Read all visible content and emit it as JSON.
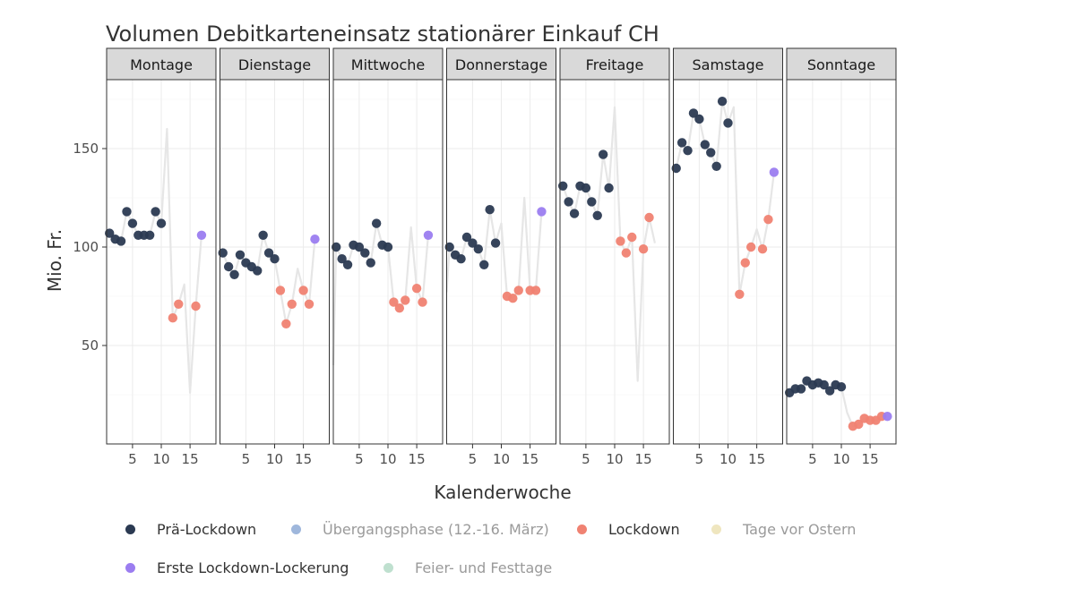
{
  "chart_data": {
    "type": "scatter",
    "title": "Volumen Debitkarteneinsatz stationärer Einkauf CH",
    "xlabel": "Kalenderwoche",
    "ylabel": "Mio. Fr.",
    "xlim": [
      0.5,
      19.5
    ],
    "ylim": [
      0,
      185
    ],
    "x_ticks": [
      5,
      10,
      15
    ],
    "y_ticks": [
      50,
      100,
      150
    ],
    "grid": true,
    "legend_position": "bottom",
    "categories": [
      "Prä-Lockdown",
      "Übergangsphase (12.-16. März)",
      "Lockdown",
      "Tage vor Ostern",
      "Erste Lockdown-Lockerung",
      "Feier- und Festtage"
    ],
    "category_colors": {
      "Prä-Lockdown": "#2b3a52",
      "Übergangsphase (12.-16. März)": "#9fb7dc",
      "Lockdown": "#f08272",
      "Tage vor Ostern": "#efe6bf",
      "Erste Lockdown-Lockerung": "#9b7df0",
      "Feier- und Festtage": "#bfe0cf"
    },
    "line_color": "#e6e6e6",
    "panels": [
      {
        "day": "Montage",
        "line": [
          [
            1,
            107
          ],
          [
            2,
            104
          ],
          [
            3,
            103
          ],
          [
            4,
            118
          ],
          [
            5,
            112
          ],
          [
            6,
            106
          ],
          [
            7,
            106
          ],
          [
            8,
            106
          ],
          [
            9,
            118
          ],
          [
            10,
            112
          ],
          [
            11,
            160
          ],
          [
            12,
            64
          ],
          [
            13,
            71
          ],
          [
            14,
            81
          ],
          [
            15,
            26
          ],
          [
            16,
            70
          ],
          [
            17,
            106
          ]
        ],
        "points": [
          {
            "x": 1,
            "y": 107,
            "c": "Prä-Lockdown"
          },
          {
            "x": 2,
            "y": 104,
            "c": "Prä-Lockdown"
          },
          {
            "x": 3,
            "y": 103,
            "c": "Prä-Lockdown"
          },
          {
            "x": 4,
            "y": 118,
            "c": "Prä-Lockdown"
          },
          {
            "x": 5,
            "y": 112,
            "c": "Prä-Lockdown"
          },
          {
            "x": 6,
            "y": 106,
            "c": "Prä-Lockdown"
          },
          {
            "x": 7,
            "y": 106,
            "c": "Prä-Lockdown"
          },
          {
            "x": 8,
            "y": 106,
            "c": "Prä-Lockdown"
          },
          {
            "x": 9,
            "y": 118,
            "c": "Prä-Lockdown"
          },
          {
            "x": 10,
            "y": 112,
            "c": "Prä-Lockdown"
          },
          {
            "x": 12,
            "y": 64,
            "c": "Lockdown"
          },
          {
            "x": 13,
            "y": 71,
            "c": "Lockdown"
          },
          {
            "x": 16,
            "y": 70,
            "c": "Lockdown"
          },
          {
            "x": 17,
            "y": 106,
            "c": "Erste Lockdown-Lockerung"
          }
        ]
      },
      {
        "day": "Dienstage",
        "line": [
          [
            1,
            97
          ],
          [
            2,
            90
          ],
          [
            3,
            86
          ],
          [
            4,
            96
          ],
          [
            5,
            92
          ],
          [
            6,
            90
          ],
          [
            7,
            88
          ],
          [
            8,
            106
          ],
          [
            9,
            97
          ],
          [
            10,
            94
          ],
          [
            11,
            78
          ],
          [
            12,
            61
          ],
          [
            13,
            71
          ],
          [
            14,
            89
          ],
          [
            15,
            78
          ],
          [
            16,
            71
          ],
          [
            17,
            104
          ]
        ],
        "points": [
          {
            "x": 1,
            "y": 97,
            "c": "Prä-Lockdown"
          },
          {
            "x": 2,
            "y": 90,
            "c": "Prä-Lockdown"
          },
          {
            "x": 3,
            "y": 86,
            "c": "Prä-Lockdown"
          },
          {
            "x": 4,
            "y": 96,
            "c": "Prä-Lockdown"
          },
          {
            "x": 5,
            "y": 92,
            "c": "Prä-Lockdown"
          },
          {
            "x": 6,
            "y": 90,
            "c": "Prä-Lockdown"
          },
          {
            "x": 7,
            "y": 88,
            "c": "Prä-Lockdown"
          },
          {
            "x": 8,
            "y": 106,
            "c": "Prä-Lockdown"
          },
          {
            "x": 9,
            "y": 97,
            "c": "Prä-Lockdown"
          },
          {
            "x": 10,
            "y": 94,
            "c": "Prä-Lockdown"
          },
          {
            "x": 11,
            "y": 78,
            "c": "Lockdown"
          },
          {
            "x": 12,
            "y": 61,
            "c": "Lockdown"
          },
          {
            "x": 13,
            "y": 71,
            "c": "Lockdown"
          },
          {
            "x": 15,
            "y": 78,
            "c": "Lockdown"
          },
          {
            "x": 16,
            "y": 71,
            "c": "Lockdown"
          },
          {
            "x": 17,
            "y": 104,
            "c": "Erste Lockdown-Lockerung"
          }
        ]
      },
      {
        "day": "Mittwoche",
        "line": [
          [
            0.5,
            40
          ],
          [
            1,
            100
          ],
          [
            2,
            94
          ],
          [
            3,
            91
          ],
          [
            4,
            101
          ],
          [
            5,
            100
          ],
          [
            6,
            97
          ],
          [
            7,
            92
          ],
          [
            8,
            112
          ],
          [
            9,
            101
          ],
          [
            10,
            100
          ],
          [
            11,
            72
          ],
          [
            12,
            69
          ],
          [
            13,
            73
          ],
          [
            14,
            110
          ],
          [
            15,
            79
          ],
          [
            16,
            72
          ],
          [
            17,
            106
          ]
        ],
        "points": [
          {
            "x": 1,
            "y": 100,
            "c": "Prä-Lockdown"
          },
          {
            "x": 2,
            "y": 94,
            "c": "Prä-Lockdown"
          },
          {
            "x": 3,
            "y": 91,
            "c": "Prä-Lockdown"
          },
          {
            "x": 4,
            "y": 101,
            "c": "Prä-Lockdown"
          },
          {
            "x": 5,
            "y": 100,
            "c": "Prä-Lockdown"
          },
          {
            "x": 6,
            "y": 97,
            "c": "Prä-Lockdown"
          },
          {
            "x": 7,
            "y": 92,
            "c": "Prä-Lockdown"
          },
          {
            "x": 8,
            "y": 112,
            "c": "Prä-Lockdown"
          },
          {
            "x": 9,
            "y": 101,
            "c": "Prä-Lockdown"
          },
          {
            "x": 10,
            "y": 100,
            "c": "Prä-Lockdown"
          },
          {
            "x": 11,
            "y": 72,
            "c": "Lockdown"
          },
          {
            "x": 12,
            "y": 69,
            "c": "Lockdown"
          },
          {
            "x": 13,
            "y": 73,
            "c": "Lockdown"
          },
          {
            "x": 15,
            "y": 79,
            "c": "Lockdown"
          },
          {
            "x": 16,
            "y": 72,
            "c": "Lockdown"
          },
          {
            "x": 17,
            "y": 106,
            "c": "Erste Lockdown-Lockerung"
          }
        ]
      },
      {
        "day": "Donnerstage",
        "line": [
          [
            0.5,
            77
          ],
          [
            1,
            100
          ],
          [
            2,
            96
          ],
          [
            3,
            94
          ],
          [
            4,
            105
          ],
          [
            5,
            102
          ],
          [
            6,
            99
          ],
          [
            7,
            91
          ],
          [
            8,
            119
          ],
          [
            9,
            102
          ],
          [
            10,
            112
          ],
          [
            11,
            75
          ],
          [
            12,
            74
          ],
          [
            13,
            78
          ],
          [
            14,
            125
          ],
          [
            15,
            78
          ],
          [
            16,
            78
          ],
          [
            17,
            118
          ]
        ],
        "points": [
          {
            "x": 1,
            "y": 100,
            "c": "Prä-Lockdown"
          },
          {
            "x": 2,
            "y": 96,
            "c": "Prä-Lockdown"
          },
          {
            "x": 3,
            "y": 94,
            "c": "Prä-Lockdown"
          },
          {
            "x": 4,
            "y": 105,
            "c": "Prä-Lockdown"
          },
          {
            "x": 5,
            "y": 102,
            "c": "Prä-Lockdown"
          },
          {
            "x": 6,
            "y": 99,
            "c": "Prä-Lockdown"
          },
          {
            "x": 7,
            "y": 91,
            "c": "Prä-Lockdown"
          },
          {
            "x": 8,
            "y": 119,
            "c": "Prä-Lockdown"
          },
          {
            "x": 9,
            "y": 102,
            "c": "Prä-Lockdown"
          },
          {
            "x": 11,
            "y": 75,
            "c": "Lockdown"
          },
          {
            "x": 12,
            "y": 74,
            "c": "Lockdown"
          },
          {
            "x": 13,
            "y": 78,
            "c": "Lockdown"
          },
          {
            "x": 15,
            "y": 78,
            "c": "Lockdown"
          },
          {
            "x": 16,
            "y": 78,
            "c": "Lockdown"
          },
          {
            "x": 17,
            "y": 118,
            "c": "Erste Lockdown-Lockerung"
          }
        ]
      },
      {
        "day": "Freitage",
        "line": [
          [
            1,
            131
          ],
          [
            2,
            123
          ],
          [
            3,
            117
          ],
          [
            4,
            131
          ],
          [
            5,
            130
          ],
          [
            6,
            123
          ],
          [
            7,
            116
          ],
          [
            8,
            147
          ],
          [
            9,
            130
          ],
          [
            10,
            171
          ],
          [
            11,
            103
          ],
          [
            12,
            97
          ],
          [
            13,
            105
          ],
          [
            14,
            32
          ],
          [
            15,
            99
          ],
          [
            16,
            115
          ],
          [
            17,
            102
          ]
        ],
        "points": [
          {
            "x": 1,
            "y": 131,
            "c": "Prä-Lockdown"
          },
          {
            "x": 2,
            "y": 123,
            "c": "Prä-Lockdown"
          },
          {
            "x": 3,
            "y": 117,
            "c": "Prä-Lockdown"
          },
          {
            "x": 4,
            "y": 131,
            "c": "Prä-Lockdown"
          },
          {
            "x": 5,
            "y": 130,
            "c": "Prä-Lockdown"
          },
          {
            "x": 6,
            "y": 123,
            "c": "Prä-Lockdown"
          },
          {
            "x": 7,
            "y": 116,
            "c": "Prä-Lockdown"
          },
          {
            "x": 8,
            "y": 147,
            "c": "Prä-Lockdown"
          },
          {
            "x": 9,
            "y": 130,
            "c": "Prä-Lockdown"
          },
          {
            "x": 11,
            "y": 103,
            "c": "Lockdown"
          },
          {
            "x": 12,
            "y": 97,
            "c": "Lockdown"
          },
          {
            "x": 13,
            "y": 105,
            "c": "Lockdown"
          },
          {
            "x": 15,
            "y": 99,
            "c": "Lockdown"
          },
          {
            "x": 16,
            "y": 115,
            "c": "Lockdown"
          }
        ]
      },
      {
        "day": "Samstage",
        "line": [
          [
            1,
            140
          ],
          [
            2,
            153
          ],
          [
            3,
            149
          ],
          [
            4,
            168
          ],
          [
            5,
            165
          ],
          [
            6,
            152
          ],
          [
            7,
            148
          ],
          [
            8,
            141
          ],
          [
            9,
            174
          ],
          [
            10,
            163
          ],
          [
            11,
            171
          ],
          [
            12,
            76
          ],
          [
            13,
            92
          ],
          [
            14,
            100
          ],
          [
            15,
            109
          ],
          [
            16,
            99
          ],
          [
            17,
            114
          ],
          [
            18,
            138
          ]
        ],
        "points": [
          {
            "x": 1,
            "y": 140,
            "c": "Prä-Lockdown"
          },
          {
            "x": 2,
            "y": 153,
            "c": "Prä-Lockdown"
          },
          {
            "x": 3,
            "y": 149,
            "c": "Prä-Lockdown"
          },
          {
            "x": 4,
            "y": 168,
            "c": "Prä-Lockdown"
          },
          {
            "x": 5,
            "y": 165,
            "c": "Prä-Lockdown"
          },
          {
            "x": 6,
            "y": 152,
            "c": "Prä-Lockdown"
          },
          {
            "x": 7,
            "y": 148,
            "c": "Prä-Lockdown"
          },
          {
            "x": 8,
            "y": 141,
            "c": "Prä-Lockdown"
          },
          {
            "x": 9,
            "y": 174,
            "c": "Prä-Lockdown"
          },
          {
            "x": 10,
            "y": 163,
            "c": "Prä-Lockdown"
          },
          {
            "x": 12,
            "y": 76,
            "c": "Lockdown"
          },
          {
            "x": 13,
            "y": 92,
            "c": "Lockdown"
          },
          {
            "x": 14,
            "y": 100,
            "c": "Lockdown"
          },
          {
            "x": 16,
            "y": 99,
            "c": "Lockdown"
          },
          {
            "x": 17,
            "y": 114,
            "c": "Lockdown"
          },
          {
            "x": 18,
            "y": 138,
            "c": "Erste Lockdown-Lockerung"
          }
        ]
      },
      {
        "day": "Sonntage",
        "line": [
          [
            1,
            26
          ],
          [
            2,
            28
          ],
          [
            3,
            28
          ],
          [
            4,
            32
          ],
          [
            5,
            30
          ],
          [
            6,
            31
          ],
          [
            7,
            30
          ],
          [
            8,
            27
          ],
          [
            9,
            30
          ],
          [
            10,
            29
          ],
          [
            11,
            16
          ],
          [
            12,
            9
          ],
          [
            13,
            10
          ],
          [
            14,
            13
          ],
          [
            15,
            12
          ],
          [
            16,
            12
          ],
          [
            17,
            14
          ],
          [
            18,
            14
          ]
        ],
        "points": [
          {
            "x": 1,
            "y": 26,
            "c": "Prä-Lockdown"
          },
          {
            "x": 2,
            "y": 28,
            "c": "Prä-Lockdown"
          },
          {
            "x": 3,
            "y": 28,
            "c": "Prä-Lockdown"
          },
          {
            "x": 4,
            "y": 32,
            "c": "Prä-Lockdown"
          },
          {
            "x": 5,
            "y": 30,
            "c": "Prä-Lockdown"
          },
          {
            "x": 6,
            "y": 31,
            "c": "Prä-Lockdown"
          },
          {
            "x": 7,
            "y": 30,
            "c": "Prä-Lockdown"
          },
          {
            "x": 8,
            "y": 27,
            "c": "Prä-Lockdown"
          },
          {
            "x": 9,
            "y": 30,
            "c": "Prä-Lockdown"
          },
          {
            "x": 10,
            "y": 29,
            "c": "Prä-Lockdown"
          },
          {
            "x": 12,
            "y": 9,
            "c": "Lockdown"
          },
          {
            "x": 13,
            "y": 10,
            "c": "Lockdown"
          },
          {
            "x": 14,
            "y": 13,
            "c": "Lockdown"
          },
          {
            "x": 15,
            "y": 12,
            "c": "Lockdown"
          },
          {
            "x": 16,
            "y": 12,
            "c": "Lockdown"
          },
          {
            "x": 17,
            "y": 14,
            "c": "Lockdown"
          },
          {
            "x": 18,
            "y": 14,
            "c": "Erste Lockdown-Lockerung"
          }
        ]
      }
    ],
    "legend": [
      {
        "label": "Prä-Lockdown",
        "color": "#2b3a52",
        "faded": false
      },
      {
        "label": "Übergangsphase (12.-16. März)",
        "color": "#9fb7dc",
        "faded": true
      },
      {
        "label": "Lockdown",
        "color": "#f08272",
        "faded": false
      },
      {
        "label": "Tage vor Ostern",
        "color": "#efe6bf",
        "faded": true
      },
      {
        "label": "Erste Lockdown-Lockerung",
        "color": "#9b7df0",
        "faded": false
      },
      {
        "label": "Feier- und Festtage",
        "color": "#bfe0cf",
        "faded": true
      }
    ]
  }
}
